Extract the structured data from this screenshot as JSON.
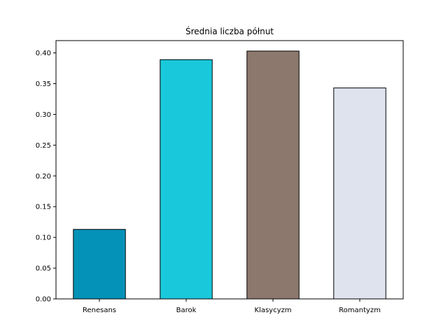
{
  "chart_data": {
    "type": "bar",
    "title": "Średnia liczba półnut",
    "xlabel": "",
    "ylabel": "",
    "categories": [
      "Renesans",
      "Barok",
      "Klasycyzm",
      "Romantyzm"
    ],
    "values": [
      0.113,
      0.389,
      0.403,
      0.343
    ],
    "colors": [
      "#0492b8",
      "#19c8da",
      "#8c786c",
      "#dee3ee"
    ],
    "ylim": [
      0,
      0.42
    ],
    "yticks": [
      "0.00",
      "0.05",
      "0.10",
      "0.15",
      "0.20",
      "0.25",
      "0.30",
      "0.35",
      "0.40"
    ],
    "grid": false,
    "legend": "none"
  }
}
